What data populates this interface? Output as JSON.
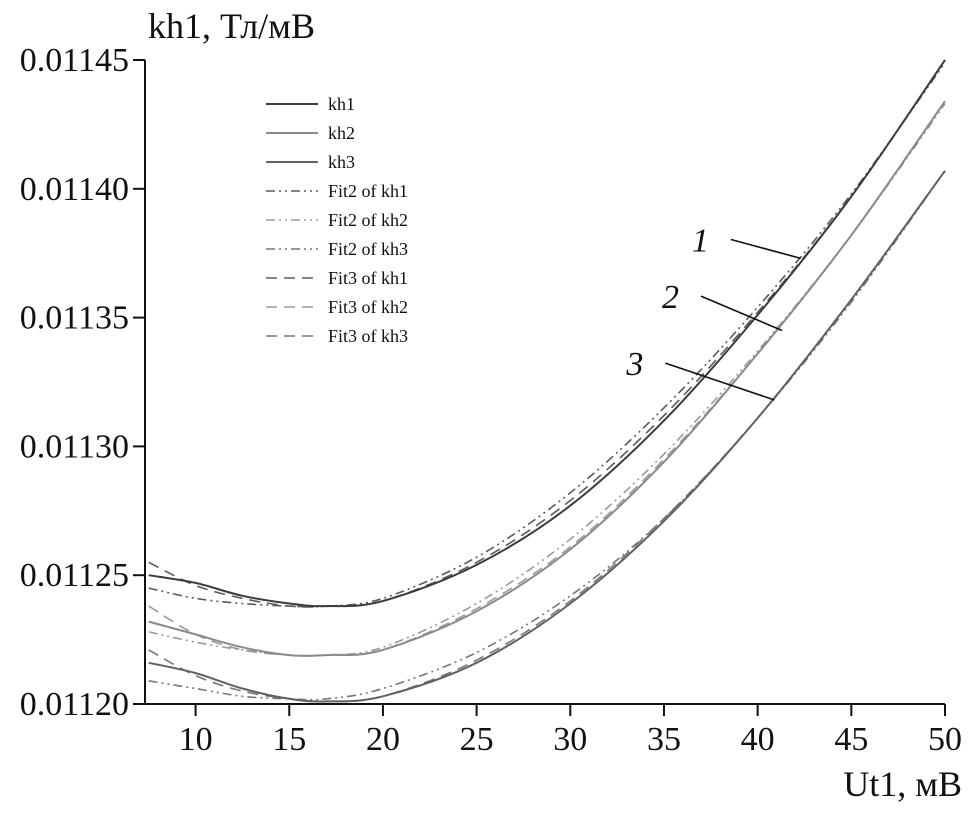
{
  "chart_data": {
    "type": "line",
    "ylabel": "kh1, Тл/мВ",
    "xlabel": "Ut1, мВ",
    "xlim": [
      7.3,
      50
    ],
    "ylim": [
      0.0112,
      0.01145
    ],
    "x_ticks": [
      "10",
      "15",
      "20",
      "25",
      "30",
      "35",
      "40",
      "45",
      "50"
    ],
    "y_ticks": [
      "0.01120",
      "0.01125",
      "0.01130",
      "0.01135",
      "0.01140",
      "0.01145"
    ],
    "grid": false,
    "legend_position": "top-left",
    "colors": {
      "kh1": "#3c3c3c",
      "kh2": "#8a8a8a",
      "kh3": "#616161",
      "fit_kh1": "#5a5a5a",
      "fit_kh2": "#9a9a9a",
      "fit_kh3": "#777777"
    },
    "series": [
      {
        "name": "kh1",
        "style": "solid",
        "x": [
          7.5,
          10,
          12.5,
          15,
          17,
          20,
          25,
          30,
          35,
          40,
          45,
          50
        ],
        "y": [
          0.01125,
          0.011247,
          0.011242,
          0.011239,
          0.011238,
          0.01124,
          0.011254,
          0.011277,
          0.01131,
          0.011351,
          0.011397,
          0.01145
        ]
      },
      {
        "name": "kh2",
        "style": "solid",
        "x": [
          7.5,
          10,
          12.5,
          15,
          17,
          20,
          25,
          30,
          35,
          40,
          45,
          50
        ],
        "y": [
          0.011232,
          0.011227,
          0.011222,
          0.011219,
          0.011219,
          0.011221,
          0.011236,
          0.01126,
          0.011294,
          0.011336,
          0.011382,
          0.011434
        ]
      },
      {
        "name": "kh3",
        "style": "solid",
        "x": [
          7.5,
          10,
          12.5,
          15,
          17,
          20,
          25,
          30,
          35,
          40,
          45,
          50
        ],
        "y": [
          0.011216,
          0.011212,
          0.011206,
          0.011202,
          0.011201,
          0.011203,
          0.011216,
          0.011239,
          0.011271,
          0.011311,
          0.011357,
          0.011407
        ]
      },
      {
        "name": "Fit2 of kh1",
        "style": "dashdotdot",
        "x": [
          7.5,
          10,
          12.5,
          15,
          17,
          20,
          25,
          30,
          35,
          40,
          45,
          50
        ],
        "y": [
          0.011245,
          0.011241,
          0.011239,
          0.011238,
          0.011238,
          0.011241,
          0.011257,
          0.011282,
          0.011315,
          0.011354,
          0.011398,
          0.011449
        ]
      },
      {
        "name": "Fit2 of kh2",
        "style": "dashdotdot",
        "x": [
          7.5,
          10,
          12.5,
          15,
          17,
          20,
          25,
          30,
          35,
          40,
          45,
          50
        ],
        "y": [
          0.011228,
          0.011224,
          0.011221,
          0.011219,
          0.011219,
          0.011222,
          0.011239,
          0.011264,
          0.011297,
          0.011337,
          0.011382,
          0.011433
        ]
      },
      {
        "name": "Fit2 of kh3",
        "style": "dashdotdot",
        "x": [
          7.5,
          10,
          12.5,
          15,
          17,
          20,
          25,
          30,
          35,
          40,
          45,
          50
        ],
        "y": [
          0.011209,
          0.011206,
          0.011203,
          0.011202,
          0.011202,
          0.011206,
          0.01122,
          0.011242,
          0.011272,
          0.011311,
          0.011356,
          0.011407
        ]
      },
      {
        "name": "Fit3 of kh1",
        "style": "dashed",
        "x": [
          7.5,
          10,
          12.5,
          15,
          17,
          20,
          25,
          30,
          35,
          40,
          45,
          50
        ],
        "y": [
          0.011255,
          0.011246,
          0.011241,
          0.011238,
          0.011238,
          0.01124,
          0.011255,
          0.011279,
          0.011312,
          0.011352,
          0.011397,
          0.01145
        ]
      },
      {
        "name": "Fit3 of kh2",
        "style": "dashed",
        "x": [
          7.5,
          10,
          12.5,
          15,
          17,
          20,
          25,
          30,
          35,
          40,
          45,
          50
        ],
        "y": [
          0.011238,
          0.011227,
          0.011221,
          0.011219,
          0.011219,
          0.011221,
          0.011237,
          0.011261,
          0.011295,
          0.011336,
          0.011382,
          0.011434
        ]
      },
      {
        "name": "Fit3 of kh3",
        "style": "dashed",
        "x": [
          7.5,
          10,
          12.5,
          15,
          17,
          20,
          25,
          30,
          35,
          40,
          45,
          50
        ],
        "y": [
          0.011221,
          0.011211,
          0.011205,
          0.011202,
          0.011201,
          0.011203,
          0.011217,
          0.01124,
          0.011272,
          0.011311,
          0.011357,
          0.011407
        ]
      }
    ],
    "annotations": [
      {
        "text": "1",
        "target_series": "kh1",
        "label_x": 37.4,
        "label_y": 0.011378,
        "target_x": 42.3,
        "target_y": 0.011373
      },
      {
        "text": "2",
        "target_series": "kh2",
        "label_x": 35.8,
        "label_y": 0.011356,
        "target_x": 41.3,
        "target_y": 0.011345
      },
      {
        "text": "3",
        "target_series": "kh3",
        "label_x": 33.9,
        "label_y": 0.01133,
        "target_x": 40.9,
        "target_y": 0.011318
      }
    ]
  }
}
